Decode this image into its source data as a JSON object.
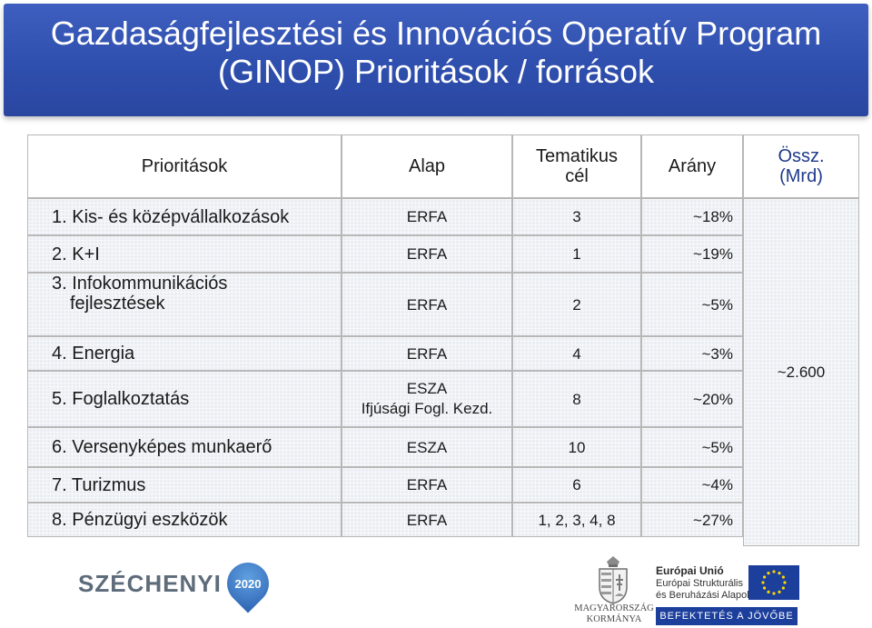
{
  "title": {
    "line1": "Gazdaságfejlesztési és Innovációs Operatív Program",
    "line2": "(GINOP) Prioritások / források"
  },
  "table": {
    "headers": {
      "priorities": "Prioritások",
      "fund": "Alap",
      "thematic_1": "Tematikus",
      "thematic_2": "cél",
      "share": "Arány",
      "total_1": "Össz.",
      "total_2": "(Mrd)"
    },
    "rows": [
      {
        "priority": "1. Kis- és középvállalkozások",
        "priority_2": "",
        "fund": "ERFA",
        "fund_2": "",
        "thematic": "3",
        "share": "~18%"
      },
      {
        "priority": "2. K+I",
        "priority_2": "",
        "fund": "ERFA",
        "fund_2": "",
        "thematic": "1",
        "share": "~19%"
      },
      {
        "priority": "3. Infokommunikációs",
        "priority_2": "fejlesztések",
        "fund": "ERFA",
        "fund_2": "",
        "thematic": "2",
        "share": "~5%"
      },
      {
        "priority": "4. Energia",
        "priority_2": "",
        "fund": "ERFA",
        "fund_2": "",
        "thematic": "4",
        "share": "~3%"
      },
      {
        "priority": "5. Foglalkoztatás",
        "priority_2": "",
        "fund": "ESZA",
        "fund_2": "Ifjúsági Fogl. Kezd.",
        "thematic": "8",
        "share": "~20%"
      },
      {
        "priority": "6. Versenyképes munkaerő",
        "priority_2": "",
        "fund": "ESZA",
        "fund_2": "",
        "thematic": "10",
        "share": "~5%"
      },
      {
        "priority": "7. Turizmus",
        "priority_2": "",
        "fund": "ERFA",
        "fund_2": "",
        "thematic": "6",
        "share": "~4%"
      },
      {
        "priority": "8. Pénzügyi eszközök",
        "priority_2": "",
        "fund": "ERFA",
        "fund_2": "",
        "thematic": "1, 2, 3, 4, 8",
        "share": "~27%"
      }
    ],
    "total_value": "~2.600"
  },
  "footer": {
    "szechenyi_text": "SZÉCHENYI",
    "szechenyi_year": "2020",
    "hu_gov_line1": "MAGYARORSZÁG",
    "hu_gov_line2": "KORMÁNYA",
    "eu_title": "Európai Unió",
    "eu_line1": "Európai Strukturális",
    "eu_line2": "és Beruházási Alapok",
    "eu_banner": "BEFEKTETÉS A JÖVŐBE"
  },
  "colors": {
    "banner": "#2f4fae",
    "cell_bg": "#eaeef3",
    "eu_blue": "#1c3f9c",
    "eu_star": "#ffd400"
  },
  "icons": {
    "crest": "hungarian-coat-of-arms-icon",
    "flag": "eu-flag-icon",
    "pin": "map-pin-icon"
  }
}
